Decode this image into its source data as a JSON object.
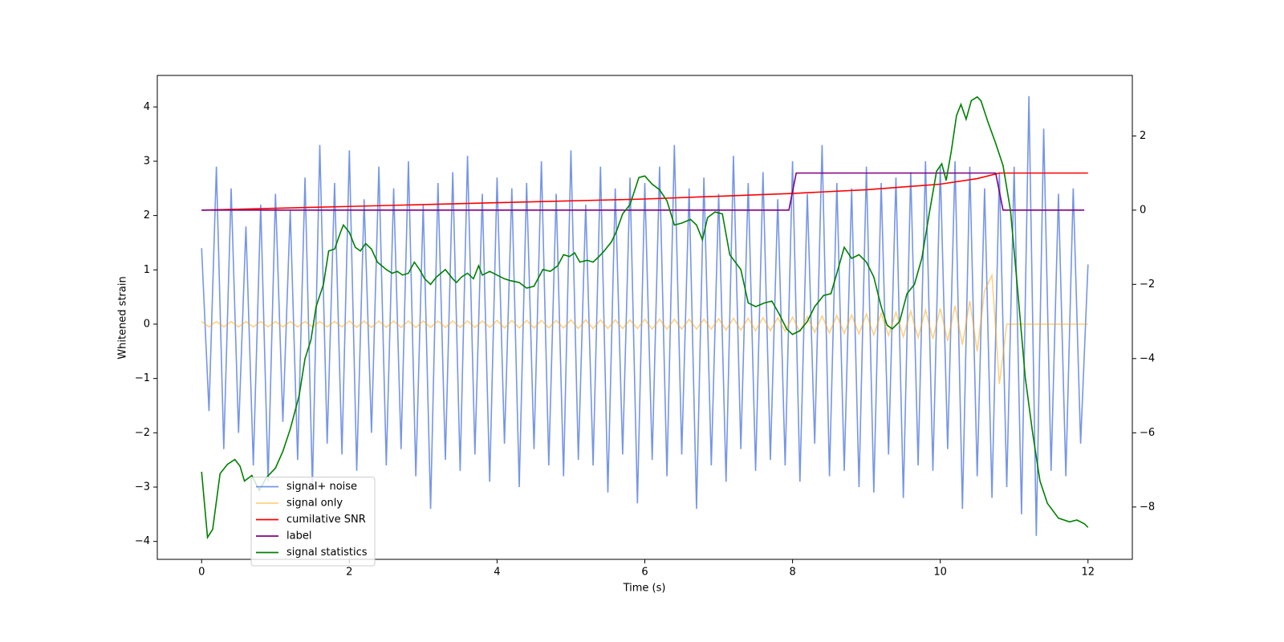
{
  "chart_data": {
    "type": "line",
    "xlabel": "Time (s)",
    "ylabel": "Whitened strain",
    "xlim": [
      -0.6,
      12.6
    ],
    "ylim": [
      -4.33,
      4.58
    ],
    "y2lim": [
      -9.41,
      3.63
    ],
    "xticks": [
      0,
      2,
      4,
      6,
      8,
      10,
      12
    ],
    "yticks": [
      {
        "value": -4,
        "label": "−4"
      },
      {
        "value": -3,
        "label": "−3"
      },
      {
        "value": -2,
        "label": "−2"
      },
      {
        "value": -1,
        "label": "−1"
      },
      0,
      1,
      2,
      3,
      4
    ],
    "y2ticks": [
      {
        "value": -8,
        "label": "−8"
      },
      {
        "value": -6,
        "label": "−6"
      },
      {
        "value": -4,
        "label": "−4"
      },
      {
        "value": -2,
        "label": "−2"
      },
      0,
      2
    ],
    "grid": false,
    "legend": "lower left",
    "x": [
      0,
      0.1,
      0.2,
      0.3,
      0.4,
      0.5,
      0.6,
      0.7,
      0.8,
      0.9,
      1,
      1.1,
      1.2,
      1.3,
      1.4,
      1.5,
      1.6,
      1.7,
      1.8,
      1.9,
      2,
      2.1,
      2.2,
      2.3,
      2.4,
      2.5,
      2.6,
      2.7,
      2.8,
      2.9,
      3,
      3.1,
      3.2,
      3.3,
      3.4,
      3.5,
      3.6,
      3.7,
      3.8,
      3.9,
      4,
      4.1,
      4.2,
      4.3,
      4.4,
      4.5,
      4.6,
      4.7,
      4.8,
      4.9,
      5,
      5.1,
      5.2,
      5.3,
      5.4,
      5.5,
      5.6,
      5.7,
      5.8,
      5.9,
      6,
      6.1,
      6.2,
      6.3,
      6.4,
      6.5,
      6.6,
      6.7,
      6.8,
      6.9,
      7,
      7.1,
      7.2,
      7.3,
      7.4,
      7.5,
      7.6,
      7.7,
      7.8,
      7.9,
      8,
      8.1,
      8.2,
      8.3,
      8.4,
      8.5,
      8.6,
      8.7,
      8.8,
      8.9,
      9,
      9.1,
      9.2,
      9.3,
      9.4,
      9.5,
      9.6,
      9.7,
      9.8,
      9.9,
      10,
      10.1,
      10.2,
      10.3,
      10.4,
      10.5,
      10.6,
      10.7,
      10.8,
      10.9,
      11,
      11.1,
      11.2,
      11.3,
      11.4,
      11.5,
      11.6,
      11.7,
      11.8,
      11.9,
      12
    ],
    "series": [
      {
        "name": "signal+ noise",
        "color": "#6f8fe6",
        "opacity": 0.95,
        "values": [
          1.4,
          -1.6,
          2.9,
          -2.3,
          2.5,
          -2.0,
          1.8,
          -2.6,
          2.2,
          -2.9,
          2.4,
          -1.8,
          2.1,
          -2.5,
          2.7,
          -3.0,
          3.3,
          -2.2,
          2.6,
          -2.4,
          3.2,
          -2.7,
          2.3,
          -2.0,
          2.9,
          -2.6,
          2.5,
          -2.3,
          3.0,
          -2.8,
          2.2,
          -3.4,
          2.6,
          -2.5,
          2.8,
          -2.7,
          3.1,
          -2.4,
          2.4,
          -2.9,
          2.7,
          -2.2,
          2.5,
          -3.0,
          2.6,
          -2.3,
          3.0,
          -2.6,
          2.4,
          -2.8,
          3.2,
          -2.5,
          2.2,
          -2.6,
          2.9,
          -3.1,
          2.5,
          -2.4,
          2.7,
          -3.3,
          2.6,
          -2.5,
          2.9,
          -2.8,
          3.3,
          -2.4,
          2.5,
          -3.4,
          2.7,
          -2.6,
          2.4,
          -2.9,
          3.1,
          -2.3,
          2.6,
          -2.7,
          2.8,
          -2.5,
          2.3,
          -2.6,
          3.0,
          -2.9,
          2.4,
          -2.2,
          3.3,
          -2.8,
          2.6,
          -2.7,
          2.5,
          -3.0,
          2.9,
          -3.1,
          2.6,
          -2.4,
          2.7,
          -3.2,
          2.8,
          -2.6,
          3.0,
          -2.7,
          2.9,
          -2.3,
          3.0,
          -3.4,
          2.9,
          -2.8,
          2.5,
          -3.2,
          2.8,
          -3.0,
          2.9,
          -3.5,
          4.2,
          -3.9,
          3.6,
          -2.7,
          2.4,
          -2.8,
          2.5,
          -2.2,
          1.1
        ]
      },
      {
        "name": "signal only",
        "color": "#ffa500",
        "opacity": 0.5,
        "values": [
          0.05,
          -0.05,
          0.05,
          -0.05,
          0.05,
          -0.05,
          0.05,
          -0.05,
          0.05,
          -0.05,
          0.05,
          -0.05,
          0.05,
          -0.05,
          0.05,
          -0.05,
          0.05,
          -0.05,
          0.05,
          -0.05,
          0.06,
          -0.06,
          0.06,
          -0.06,
          0.06,
          -0.06,
          0.06,
          -0.06,
          0.06,
          -0.06,
          0.06,
          -0.06,
          0.06,
          -0.06,
          0.06,
          -0.06,
          0.06,
          -0.06,
          0.06,
          -0.06,
          0.07,
          -0.07,
          0.07,
          -0.07,
          0.07,
          -0.07,
          0.07,
          -0.07,
          0.07,
          -0.07,
          0.08,
          -0.08,
          0.08,
          -0.08,
          0.08,
          -0.08,
          0.08,
          -0.08,
          0.08,
          -0.08,
          0.09,
          -0.09,
          0.09,
          -0.09,
          0.09,
          -0.09,
          0.09,
          -0.09,
          0.09,
          -0.09,
          0.1,
          -0.11,
          0.11,
          -0.11,
          0.11,
          -0.12,
          0.12,
          -0.12,
          0.12,
          -0.13,
          0.13,
          -0.14,
          0.14,
          -0.15,
          0.15,
          -0.16,
          0.16,
          -0.17,
          0.17,
          -0.18,
          0.19,
          -0.2,
          0.2,
          -0.21,
          0.22,
          -0.23,
          0.24,
          -0.25,
          0.26,
          -0.27,
          0.29,
          -0.31,
          0.34,
          -0.38,
          0.43,
          -0.5,
          0.62,
          0.9,
          -1.1,
          0,
          0,
          0,
          0,
          0,
          0,
          0,
          0,
          0,
          0,
          0,
          0
        ]
      },
      {
        "name": "cumilative SNR",
        "color": "#ff0000",
        "axis": "y2",
        "x": [
          0,
          2,
          4,
          6,
          8,
          9,
          10,
          10.5,
          10.8,
          12
        ],
        "values": [
          0,
          0.1,
          0.2,
          0.3,
          0.45,
          0.55,
          0.7,
          0.85,
          1.0,
          1.0
        ]
      },
      {
        "name": "label",
        "color": "#800080",
        "axis": "y2",
        "x": [
          0,
          7.95,
          8.05,
          10.75,
          10.85,
          11.95
        ],
        "values": [
          0,
          0,
          1,
          1,
          0,
          0
        ]
      },
      {
        "name": "signal statistics",
        "color": "#008000",
        "axis": "y2",
        "x": [
          0,
          0.08,
          0.15,
          0.25,
          0.35,
          0.45,
          0.52,
          0.58,
          0.68,
          0.78,
          0.88,
          1.0,
          1.1,
          1.2,
          1.32,
          1.4,
          1.48,
          1.55,
          1.65,
          1.72,
          1.8,
          1.88,
          1.92,
          2.0,
          2.08,
          2.15,
          2.22,
          2.3,
          2.38,
          2.5,
          2.58,
          2.65,
          2.72,
          2.8,
          2.88,
          2.95,
          3.02,
          3.1,
          3.18,
          3.3,
          3.4,
          3.45,
          3.52,
          3.6,
          3.68,
          3.75,
          3.8,
          3.9,
          4.0,
          4.1,
          4.18,
          4.3,
          4.4,
          4.5,
          4.62,
          4.72,
          4.82,
          4.9,
          4.98,
          5.05,
          5.12,
          5.22,
          5.3,
          5.38,
          5.45,
          5.55,
          5.62,
          5.7,
          5.8,
          5.92,
          6.0,
          6.1,
          6.2,
          6.3,
          6.4,
          6.5,
          6.62,
          6.7,
          6.78,
          6.85,
          6.95,
          7.05,
          7.15,
          7.3,
          7.4,
          7.5,
          7.62,
          7.72,
          7.82,
          7.92,
          8.0,
          8.1,
          8.2,
          8.3,
          8.42,
          8.52,
          8.6,
          8.7,
          8.8,
          8.9,
          9.0,
          9.1,
          9.2,
          9.28,
          9.35,
          9.45,
          9.55,
          9.65,
          9.75,
          9.85,
          9.95,
          10.02,
          10.08,
          10.15,
          10.22,
          10.28,
          10.35,
          10.42,
          10.5,
          10.55,
          10.65,
          10.75,
          10.85,
          10.95,
          11.05,
          11.15,
          11.25,
          11.35,
          11.45,
          11.6,
          11.75,
          11.85,
          11.95,
          12.0
        ],
        "values": [
          -7.05,
          -8.82,
          -8.6,
          -7.1,
          -6.85,
          -6.72,
          -6.9,
          -7.3,
          -7.15,
          -7.55,
          -7.2,
          -6.95,
          -6.5,
          -5.9,
          -5.0,
          -4.0,
          -3.5,
          -2.6,
          -2.0,
          -1.1,
          -1.05,
          -0.6,
          -0.4,
          -0.6,
          -1.0,
          -1.1,
          -0.9,
          -1.05,
          -1.4,
          -1.6,
          -1.7,
          -1.65,
          -1.75,
          -1.7,
          -1.4,
          -1.6,
          -1.85,
          -2.0,
          -1.8,
          -1.6,
          -1.85,
          -1.95,
          -1.8,
          -1.7,
          -1.85,
          -1.5,
          -1.75,
          -1.65,
          -1.75,
          -1.85,
          -1.9,
          -1.95,
          -2.1,
          -2.05,
          -1.6,
          -1.65,
          -1.5,
          -1.2,
          -1.25,
          -1.15,
          -1.4,
          -1.35,
          -1.4,
          -1.25,
          -1.1,
          -0.85,
          -0.55,
          -0.1,
          0.15,
          0.88,
          0.92,
          0.7,
          0.55,
          0.25,
          -0.4,
          -0.35,
          -0.25,
          -0.4,
          -0.8,
          -0.2,
          -0.05,
          -0.1,
          -1.2,
          -1.6,
          -2.5,
          -2.6,
          -2.5,
          -2.45,
          -2.8,
          -3.2,
          -3.35,
          -3.25,
          -3.0,
          -2.6,
          -2.3,
          -2.25,
          -1.7,
          -1.0,
          -1.3,
          -1.2,
          -1.4,
          -1.8,
          -2.6,
          -3.1,
          -3.2,
          -3.0,
          -2.25,
          -2.0,
          -1.3,
          -0.1,
          1.05,
          1.25,
          0.8,
          1.6,
          2.55,
          2.85,
          2.45,
          2.95,
          3.05,
          2.95,
          2.35,
          1.8,
          1.2,
          0.0,
          -2.2,
          -4.5,
          -6.0,
          -7.3,
          -7.9,
          -8.3,
          -8.4,
          -8.35,
          -8.45,
          -8.55
        ]
      }
    ]
  }
}
